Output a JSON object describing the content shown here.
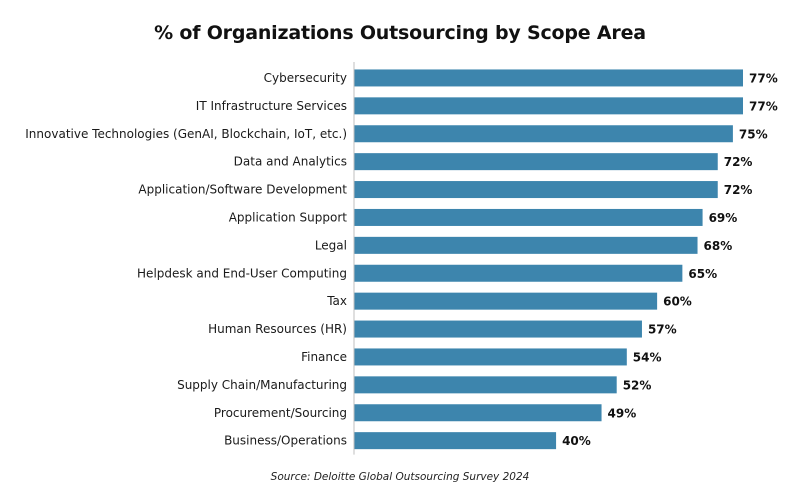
{
  "chart_data": {
    "type": "bar",
    "orientation": "horizontal",
    "title": "% of Organizations Outsourcing by Scope Area",
    "source": "Source: Deloitte Global Outsourcing Survey 2024",
    "categories": [
      "Cybersecurity",
      "IT Infrastructure Services",
      "Innovative Technologies (GenAI, Blockchain, IoT, etc.)",
      "Data and Analytics",
      "Application/Software Development",
      "Application Support",
      "Legal",
      "Helpdesk and End-User Computing",
      "Tax",
      "Human Resources (HR)",
      "Finance",
      "Supply Chain/Manufacturing",
      "Procurement/Sourcing",
      "Business/Operations"
    ],
    "values": [
      77,
      77,
      75,
      72,
      72,
      69,
      68,
      65,
      60,
      57,
      54,
      52,
      49,
      40
    ],
    "value_labels": [
      "77%",
      "77%",
      "75%",
      "72%",
      "72%",
      "69%",
      "68%",
      "65%",
      "60%",
      "57%",
      "54%",
      "52%",
      "49%",
      "40%"
    ],
    "unit": "%",
    "xlim": [
      0,
      100
    ],
    "bar_color": "#3d85ad",
    "grid": false,
    "legend": "none"
  }
}
